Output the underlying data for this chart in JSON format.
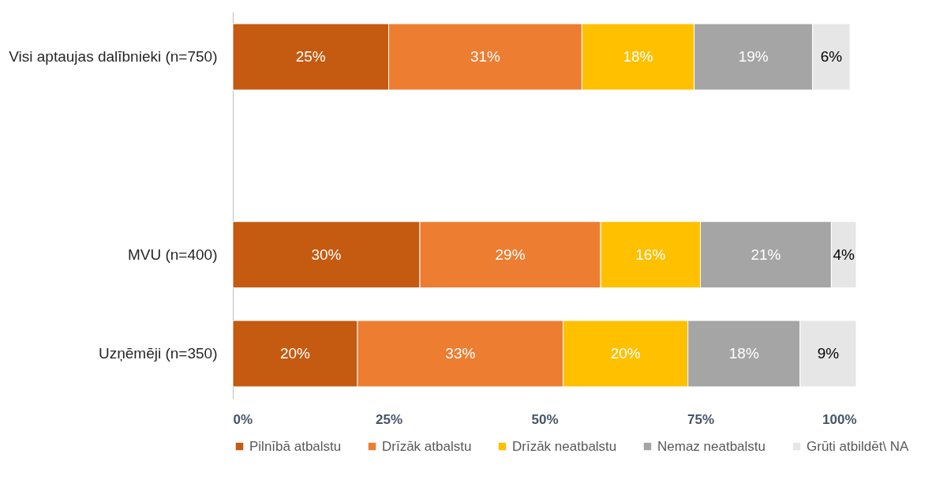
{
  "chart_data": {
    "type": "bar",
    "orientation": "horizontal",
    "stacked": true,
    "categories": [
      "Visi aptaujas dalībnieki (n=750)",
      null,
      "MVU (n=400)",
      "Uzņēmēji (n=350)"
    ],
    "series": [
      {
        "name": "Pilnībā atbalstu",
        "color": "#c55a11",
        "values": [
          25,
          null,
          30,
          20
        ],
        "value_labels": [
          "25%",
          null,
          "30%",
          "20%"
        ]
      },
      {
        "name": "Drīzāk atbalstu",
        "color": "#ed7d31",
        "values": [
          31,
          null,
          29,
          33
        ],
        "value_labels": [
          "31%",
          null,
          "29%",
          "33%"
        ]
      },
      {
        "name": "Drīzāk neatbalstu",
        "color": "#ffc000",
        "values": [
          18,
          null,
          16,
          20
        ],
        "value_labels": [
          "18%",
          null,
          "16%",
          "20%"
        ]
      },
      {
        "name": "Nemaz neatbalstu",
        "color": "#a5a5a5",
        "values": [
          19,
          null,
          21,
          18
        ],
        "value_labels": [
          "19%",
          null,
          "21%",
          "18%"
        ]
      },
      {
        "name": "Grūti atbildēt\\ NA",
        "color": "#e7e6e6",
        "values": [
          6,
          null,
          4,
          9
        ],
        "value_labels": [
          "6%",
          null,
          "4%",
          "9%"
        ]
      }
    ],
    "xlim": [
      0,
      100
    ],
    "xticks": [
      {
        "value": 0,
        "label": "0%"
      },
      {
        "value": 25,
        "label": "25%"
      },
      {
        "value": 50,
        "label": "50%"
      },
      {
        "value": 75,
        "label": "75%"
      },
      {
        "value": 100,
        "label": "100%"
      }
    ],
    "grid": false,
    "legend": "bottom"
  }
}
